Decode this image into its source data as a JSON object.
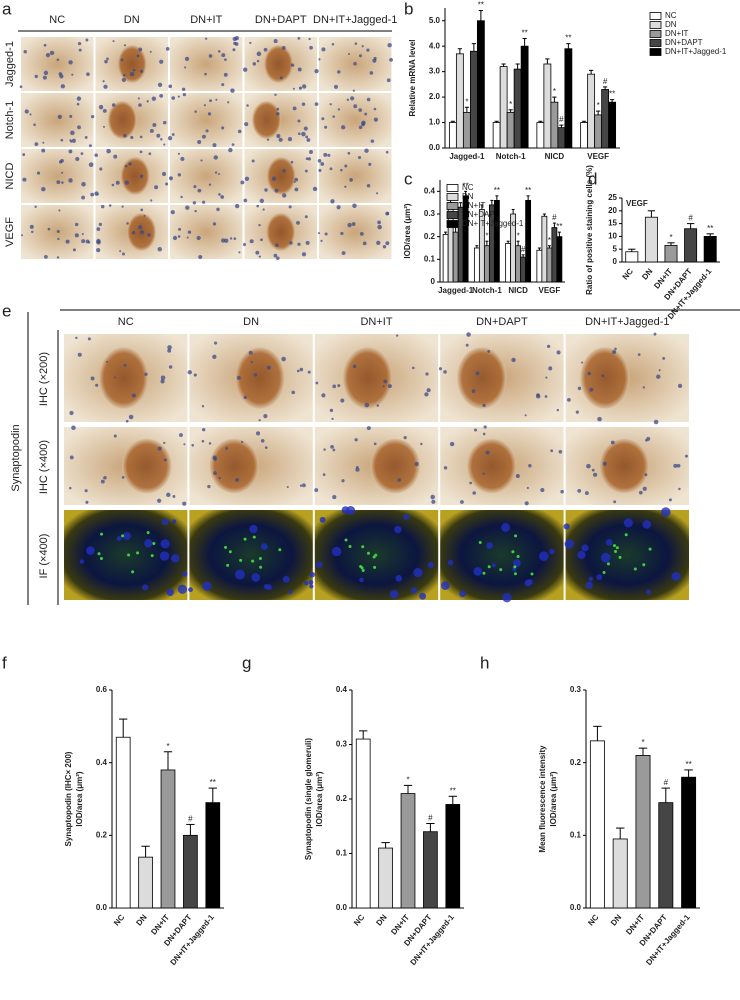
{
  "panel_labels": [
    "a",
    "b",
    "c",
    "d",
    "e",
    "f",
    "g",
    "h"
  ],
  "panel_a": {
    "columns": [
      "NC",
      "DN",
      "DN+IT",
      "DN+DAPT",
      "DN+IT+Jagged-1"
    ],
    "rows": [
      "Jagged-1",
      "Notch-1",
      "NICD",
      "VEGF"
    ]
  },
  "panel_e": {
    "group": "Synaptopodin",
    "columns": [
      "NC",
      "DN",
      "DN+IT",
      "DN+DAPT",
      "DN+IT+Jagged-1"
    ],
    "rows": [
      "IHC (×200)",
      "IHC (×400)",
      "IF (×400)"
    ]
  },
  "chart_data": [
    {
      "type": "grouped-bar",
      "ylabel": [
        "Relative mRNA level"
      ],
      "categories": [
        "Jagged-1",
        "Notch-1",
        "NICD",
        "VEGF"
      ],
      "ylim": [
        0,
        5.5
      ],
      "yticks": [
        {
          "value": 0,
          "label": "0.0"
        },
        {
          "value": 1,
          "label": "1.0"
        },
        {
          "value": 2,
          "label": "2.0"
        },
        {
          "value": 3,
          "label": "3.0"
        },
        {
          "value": 4,
          "label": "4.0"
        },
        {
          "value": 5,
          "label": "5.0"
        }
      ],
      "legend": "top-right",
      "series": [
        {
          "name": "NC",
          "color": "#ffffff",
          "values": [
            1.0,
            1.0,
            1.0,
            1.0
          ],
          "errors": [
            0.05,
            0.05,
            0.05,
            0.05
          ],
          "significance": [
            null,
            null,
            null,
            null
          ]
        },
        {
          "name": "DN",
          "color": "#dcdcdc",
          "values": [
            3.7,
            3.2,
            3.3,
            2.9
          ],
          "errors": [
            0.2,
            0.1,
            0.2,
            0.15
          ],
          "significance": [
            null,
            null,
            null,
            null
          ]
        },
        {
          "name": "DN+IT",
          "color": "#9a9a9a",
          "values": [
            1.4,
            1.4,
            1.8,
            1.3
          ],
          "errors": [
            0.2,
            0.1,
            0.2,
            0.15
          ],
          "significance": [
            "*",
            "*",
            "*",
            "*"
          ]
        },
        {
          "name": "DN+DAPT",
          "color": "#454545",
          "values": [
            3.8,
            3.1,
            0.8,
            2.3
          ],
          "errors": [
            0.3,
            0.2,
            0.1,
            0.1
          ],
          "significance": [
            null,
            null,
            "#",
            "#"
          ]
        },
        {
          "name": "DN+IT+Jagged-1",
          "color": "#000000",
          "values": [
            5.0,
            4.0,
            3.9,
            1.8
          ],
          "errors": [
            0.4,
            0.3,
            0.2,
            0.1
          ],
          "significance": [
            "**",
            "**",
            "**",
            "**"
          ]
        }
      ]
    },
    {
      "type": "grouped-bar",
      "ylabel": [
        "IOD/area (μm²)"
      ],
      "categories": [
        "Jagged-1",
        "Notch-1",
        "NICD",
        "VEGF"
      ],
      "ylim": [
        0,
        0.45
      ],
      "yticks": [
        0,
        0.1,
        0.2,
        0.3,
        0.4
      ],
      "legend": "top-left",
      "series": [
        {
          "name": "NC",
          "color": "#ffffff",
          "values": [
            0.21,
            0.15,
            0.17,
            0.14
          ],
          "errors": [
            0.01,
            0.01,
            0.01,
            0.01
          ],
          "significance": [
            null,
            null,
            null,
            null
          ]
        },
        {
          "name": "DN",
          "color": "#dcdcdc",
          "values": [
            0.35,
            0.32,
            0.3,
            0.29
          ],
          "errors": [
            0.02,
            0.02,
            0.02,
            0.01
          ],
          "significance": [
            null,
            null,
            null,
            null
          ]
        },
        {
          "name": "DN+IT",
          "color": "#9a9a9a",
          "values": [
            0.22,
            0.16,
            0.16,
            0.15
          ],
          "errors": [
            0.03,
            0.02,
            0.02,
            0.01
          ],
          "significance": [
            "*",
            "*",
            "*",
            "*"
          ]
        },
        {
          "name": "DN+DAPT",
          "color": "#454545",
          "values": [
            0.33,
            0.34,
            0.11,
            0.24
          ],
          "errors": [
            0.02,
            0.02,
            0.01,
            0.02
          ],
          "significance": [
            null,
            null,
            "#",
            "#"
          ]
        },
        {
          "name": "DN+IT+Jagged-1",
          "color": "#000000",
          "values": [
            0.38,
            0.36,
            0.36,
            0.2
          ],
          "errors": [
            0.02,
            0.02,
            0.02,
            0.02
          ],
          "significance": [
            "**",
            "**",
            "**",
            "**"
          ]
        }
      ]
    },
    {
      "type": "bar",
      "title": "VEGF",
      "ylabel": [
        "Ratio of positive staining cells (%)"
      ],
      "categories": [
        "NC",
        "DN",
        "DN+IT",
        "DN+DAPT",
        "DN+IT+Jagged-1"
      ],
      "values": [
        4,
        17.5,
        6.5,
        13,
        10
      ],
      "errors": [
        1,
        2.5,
        1,
        2,
        1
      ],
      "colors": [
        "#ffffff",
        "#dcdcdc",
        "#9a9a9a",
        "#454545",
        "#000000"
      ],
      "significance": [
        null,
        null,
        "*",
        "#",
        "**"
      ],
      "ylim": [
        0,
        25
      ],
      "yticks": [
        0,
        5,
        10,
        15,
        20,
        25
      ]
    },
    {
      "type": "bar",
      "ylabel": [
        "Synaptopodin (IHC× 200)",
        "IOD/area (μm²)"
      ],
      "categories": [
        "NC",
        "DN",
        "DN+IT",
        "DN+DAPT",
        "DN+IT+Jagged-1"
      ],
      "values": [
        0.47,
        0.14,
        0.38,
        0.2,
        0.29
      ],
      "errors": [
        0.05,
        0.03,
        0.05,
        0.03,
        0.04
      ],
      "colors": [
        "#ffffff",
        "#dcdcdc",
        "#9a9a9a",
        "#454545",
        "#000000"
      ],
      "significance": [
        null,
        null,
        "*",
        "#",
        "**"
      ],
      "ylim": [
        0,
        0.6
      ],
      "yticks": [
        {
          "value": 0,
          "label": "0.0"
        },
        0.2,
        0.4,
        0.6
      ]
    },
    {
      "type": "bar",
      "ylabel": [
        "Synaptopodin (single glomeruli)",
        "IOD/area (μm²)"
      ],
      "categories": [
        "NC",
        "DN",
        "DN+IT",
        "DN+DAPT",
        "DN+IT+Jagged-1"
      ],
      "values": [
        0.31,
        0.11,
        0.21,
        0.14,
        0.19
      ],
      "errors": [
        0.015,
        0.01,
        0.015,
        0.015,
        0.015
      ],
      "colors": [
        "#ffffff",
        "#dcdcdc",
        "#9a9a9a",
        "#454545",
        "#000000"
      ],
      "significance": [
        null,
        null,
        "*",
        "#",
        "**"
      ],
      "ylim": [
        0,
        0.4
      ],
      "yticks": [
        {
          "value": 0,
          "label": "0.0"
        },
        0.1,
        0.2,
        0.3,
        0.4
      ]
    },
    {
      "type": "bar",
      "ylabel": [
        "Mean fluorescence intensity",
        "IOD/area (μm²)"
      ],
      "categories": [
        "NC",
        "DN",
        "DN+IT",
        "DN+DAPT",
        "DN+IT+Jagged-1"
      ],
      "values": [
        0.23,
        0.095,
        0.21,
        0.145,
        0.18
      ],
      "errors": [
        0.02,
        0.015,
        0.01,
        0.02,
        0.01
      ],
      "colors": [
        "#ffffff",
        "#dcdcdc",
        "#9a9a9a",
        "#454545",
        "#000000"
      ],
      "significance": [
        null,
        null,
        "*",
        "#",
        "**"
      ],
      "ylim": [
        0,
        0.3
      ],
      "yticks": [
        {
          "value": 0,
          "label": "0.0"
        },
        0.1,
        0.2,
        0.3
      ]
    }
  ]
}
